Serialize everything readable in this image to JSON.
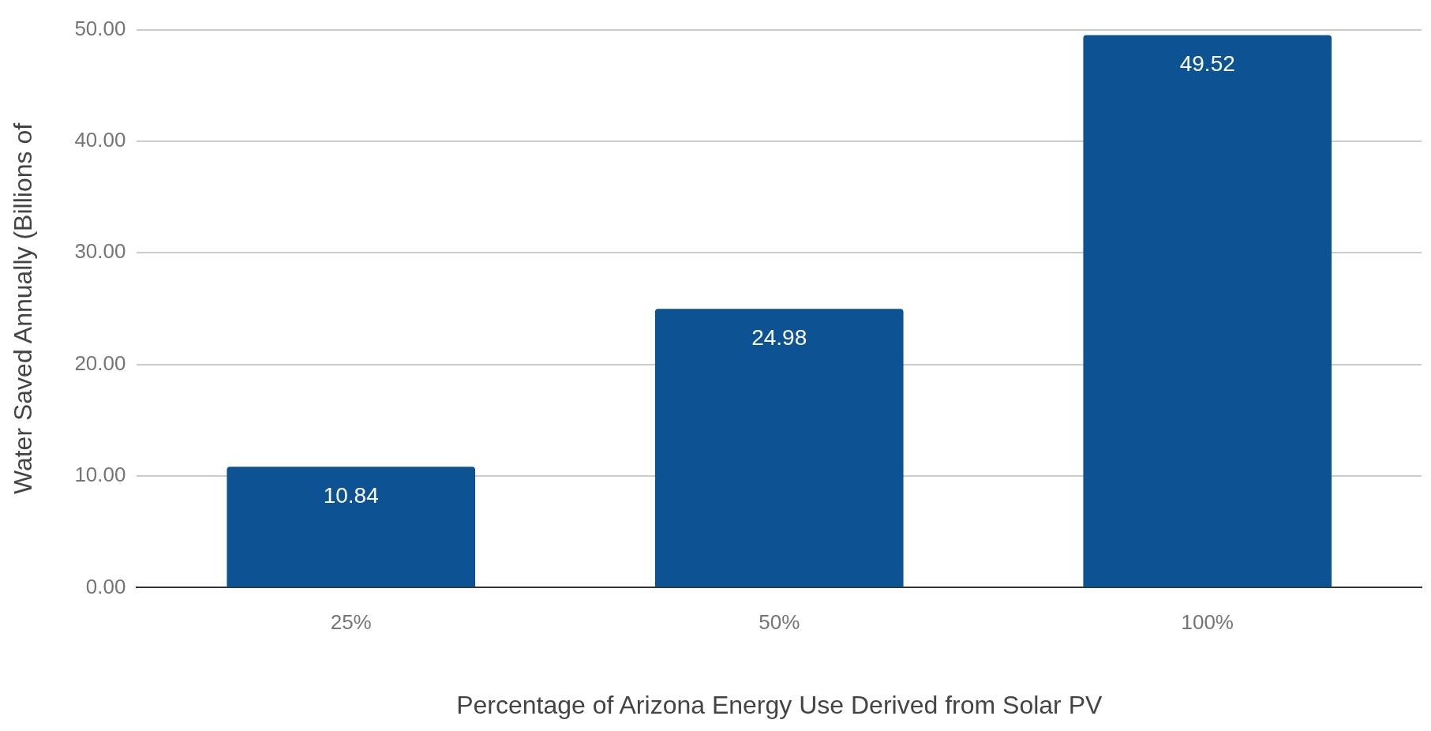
{
  "chart_data": {
    "type": "bar",
    "xlabel": "Percentage of Arizona Energy Use Derived from Solar PV",
    "ylabel": "Water Saved Annually (Billions of",
    "categories": [
      "25%",
      "50%",
      "100%"
    ],
    "values": [
      10.84,
      24.98,
      49.52
    ],
    "color": "#0d5394",
    "ylim": [
      0,
      50
    ],
    "yticks": [
      {
        "value": 0,
        "label": "0.00"
      },
      {
        "value": 10,
        "label": "10.00"
      },
      {
        "value": 20,
        "label": "20.00"
      },
      {
        "value": 30,
        "label": "30.00"
      },
      {
        "value": 40,
        "label": "40.00"
      },
      {
        "value": 50,
        "label": "50.00"
      }
    ],
    "grid": "y",
    "data_labels": true,
    "legend": false
  }
}
